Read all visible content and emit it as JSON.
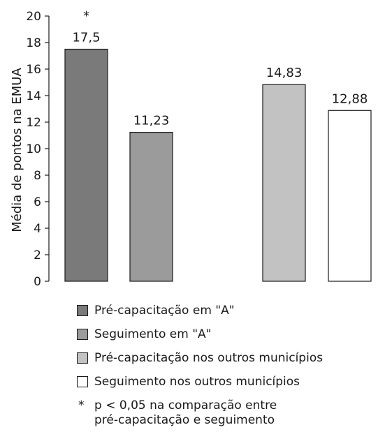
{
  "chart_data": {
    "type": "bar",
    "ylabel": "Média de pontos na EMUA",
    "xlabel": "",
    "ylim": [
      0,
      20
    ],
    "yticks": [
      0,
      2,
      4,
      6,
      8,
      10,
      12,
      14,
      16,
      18,
      20
    ],
    "grid": false,
    "series": [
      {
        "name": "Pré-capacitação em \"A\"",
        "value": 17.5,
        "label": "17,5",
        "color": "#7a7a7a",
        "marker": "*"
      },
      {
        "name": "Seguimento em \"A\"",
        "value": 11.23,
        "label": "11,23",
        "color": "#9b9b9b"
      },
      {
        "name": "Pré-capacitação nos outros municípios",
        "value": 14.83,
        "label": "14,83",
        "color": "#c2c2c2"
      },
      {
        "name": "Seguimento nos outros municípios",
        "value": 12.88,
        "label": "12,88",
        "color": "#ffffff"
      }
    ],
    "legend_position": "bottom"
  },
  "footnote": {
    "marker": "*",
    "line1": "p < 0,05 na comparação entre",
    "line2": "pré-capacitação e seguimento"
  }
}
